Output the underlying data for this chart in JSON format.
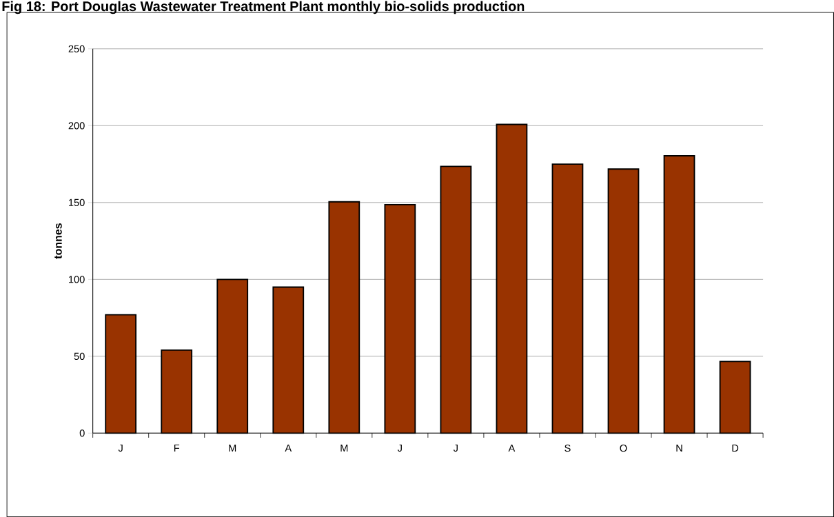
{
  "chart_data": {
    "type": "bar",
    "title": "Fig 18: Port Douglas Wastewater Treatment Plant monthly bio-solids production",
    "ylabel": "tonnes",
    "categories": [
      "J",
      "F",
      "M",
      "A",
      "M",
      "J",
      "J",
      "A",
      "S",
      "O",
      "N",
      "D"
    ],
    "values": [
      77,
      54,
      100,
      95,
      150.5,
      148.6,
      173.5,
      200.8,
      175,
      171.8,
      180.4,
      46.6
    ],
    "color": "#993300",
    "ylim": [
      0,
      250
    ],
    "yticks": [
      0,
      50,
      100,
      150,
      200,
      250
    ],
    "grid": "y"
  }
}
